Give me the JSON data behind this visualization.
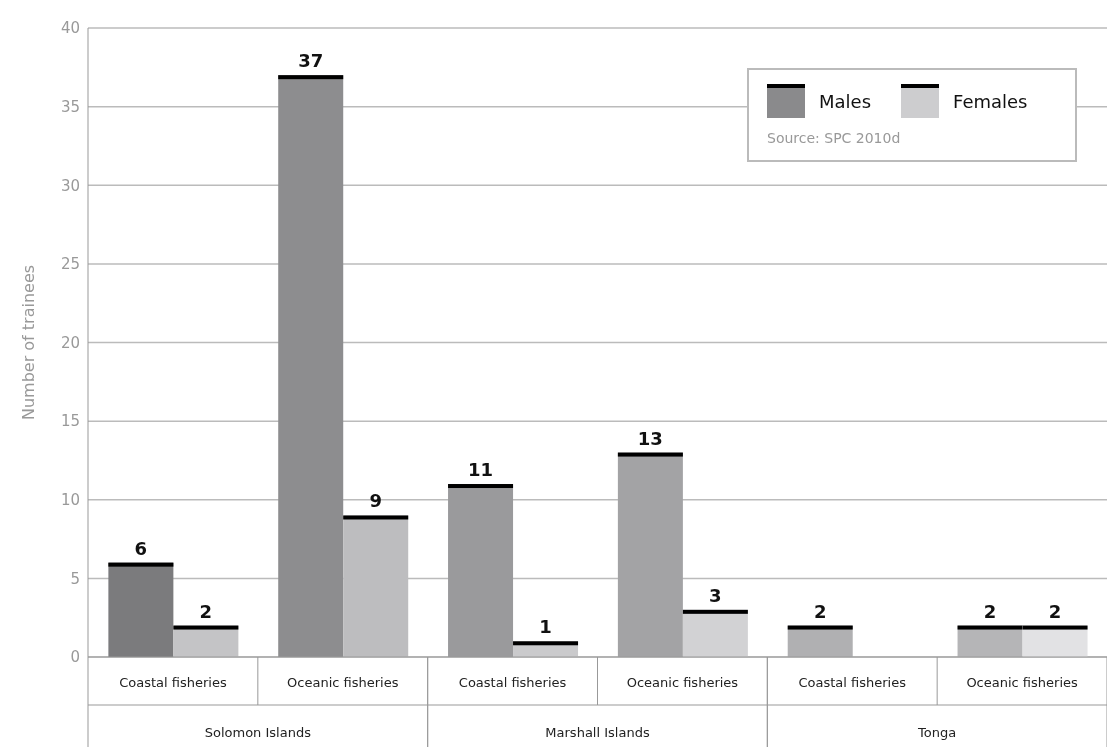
{
  "chart_data": {
    "type": "bar",
    "ylabel": "Number of trainees",
    "categories": [
      "Coastal fisheries",
      "Oceanic fisheries",
      "Coastal fisheries",
      "Oceanic fisheries",
      "Coastal fisheries",
      "Oceanic fisheries"
    ],
    "series": [
      {
        "name": "Males",
        "color": "#8a8a8c",
        "colors": [
          "#7b7b7d",
          "#8d8d8f",
          "#9a9a9c",
          "#a3a3a5",
          "#b0b0b2",
          "#b5b5b7"
        ],
        "values": [
          6,
          37,
          11,
          13,
          2,
          2
        ]
      },
      {
        "name": "Females",
        "color": "#cdcdcf",
        "colors": [
          "#c4c4c6",
          "#bdbdbf",
          "#cacacc",
          "#d2d2d4",
          null,
          "#e2e2e4"
        ],
        "values": [
          2,
          9,
          1,
          3,
          null,
          2
        ]
      }
    ],
    "annotations": [
      "Solomon Islands",
      "Marshall Islands",
      "Tonga",
      "Source: SPC 2010d"
    ],
    "ylim": [
      0,
      40
    ],
    "yticks": [
      0,
      5,
      10,
      15,
      20,
      25,
      30,
      35,
      40
    ],
    "grid": "y",
    "legend": "top right",
    "data_labels": true
  }
}
